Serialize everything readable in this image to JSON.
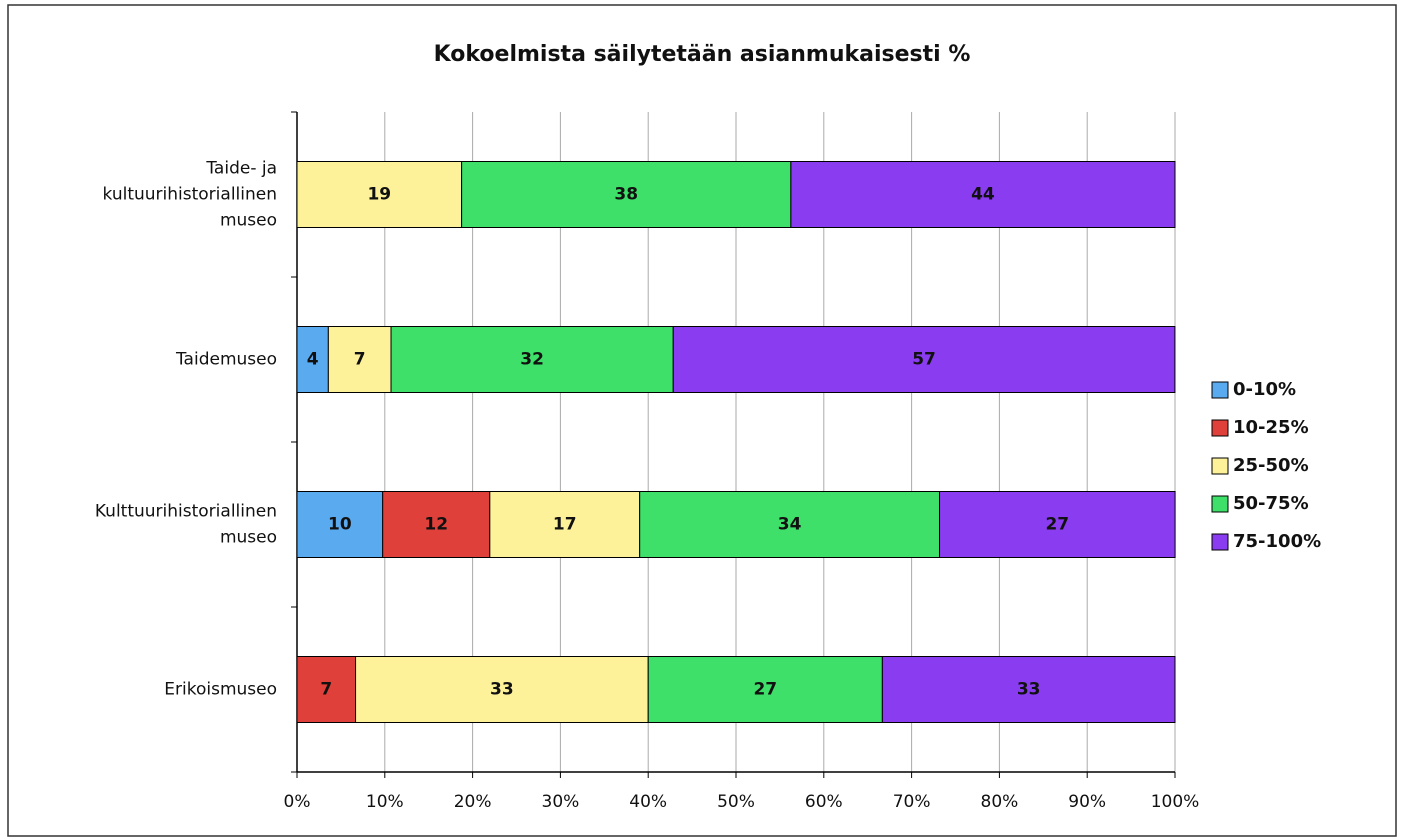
{
  "chart_data": {
    "type": "stacked-bar-horizontal",
    "title": "Kokoelmista säilytetään asianmukaisesti %",
    "categories": [
      [
        "Taide- ja",
        "kultuurihistoriallinen",
        "museo"
      ],
      [
        "Taidemuseo"
      ],
      [
        "Kulttuurihistoriallinen",
        "museo"
      ],
      [
        "Erikoismuseo"
      ]
    ],
    "series": [
      {
        "name": "0-10%",
        "color": "#5aaaf0",
        "values": [
          null,
          3.57,
          9.76,
          null
        ],
        "value_labels": [
          null,
          "4",
          "10",
          null
        ]
      },
      {
        "name": "10-25%",
        "color": "#e0403a",
        "values": [
          null,
          null,
          12.2,
          6.67
        ],
        "value_labels": [
          null,
          null,
          "12",
          "7"
        ]
      },
      {
        "name": "25-50%",
        "color": "#fdf29a",
        "values": [
          18.75,
          7.14,
          17.07,
          33.33
        ],
        "value_labels": [
          "19",
          "7",
          "17",
          "33"
        ]
      },
      {
        "name": "50-75%",
        "color": "#3ee06a",
        "values": [
          37.5,
          32.14,
          34.15,
          26.67
        ],
        "value_labels": [
          "38",
          "32",
          "34",
          "27"
        ]
      },
      {
        "name": "75-100%",
        "color": "#8a3cf0",
        "values": [
          43.75,
          57.14,
          26.83,
          33.33
        ],
        "value_labels": [
          "44",
          "57",
          "27",
          "33"
        ]
      }
    ],
    "xlim": [
      0,
      100
    ],
    "xticks": [
      {
        "value": 0,
        "label": "0%"
      },
      {
        "value": 10,
        "label": "10%"
      },
      {
        "value": 20,
        "label": "20%"
      },
      {
        "value": 30,
        "label": "30%"
      },
      {
        "value": 40,
        "label": "40%"
      },
      {
        "value": 50,
        "label": "50%"
      },
      {
        "value": 60,
        "label": "60%"
      },
      {
        "value": 70,
        "label": "70%"
      },
      {
        "value": 80,
        "label": "80%"
      },
      {
        "value": 90,
        "label": "90%"
      },
      {
        "value": 100,
        "label": "100%"
      }
    ],
    "grid": true,
    "legend": "right"
  }
}
